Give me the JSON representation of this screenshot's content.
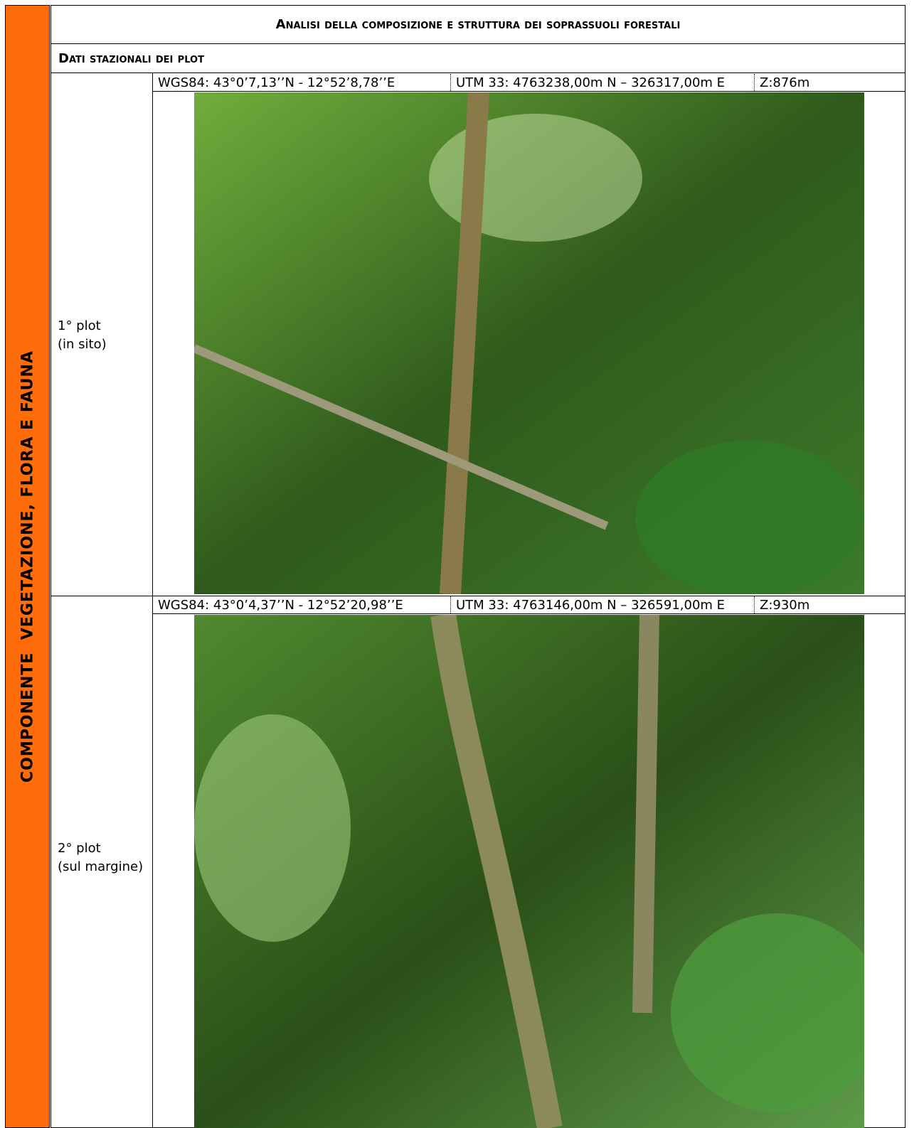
{
  "sidebar_label": "COMPONENTE  VEGETAZIONE, FLORA E FAUNA",
  "header": {
    "title": "Analisi della composizione e struttura dei soprassuoli forestali",
    "subtitle": "Dati stazionali dei plot"
  },
  "plots": [
    {
      "label": "1° plot",
      "note": "(in sito)",
      "wgs84": "WGS84: 43°0’7,13’’N - 12°52’8,78’’E",
      "utm": "UTM 33: 4763238,00m N – 326317,00m E",
      "elevation": "Z:876m"
    },
    {
      "label": "2° plot",
      "note": "(sul margine)",
      "wgs84": "WGS84: 43°0’4,37’’N - 12°52’20,98’’E",
      "utm": "UTM 33: 4763146,00m N – 326591,00m E",
      "elevation": "Z:930m"
    }
  ]
}
